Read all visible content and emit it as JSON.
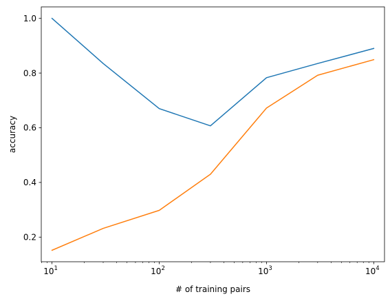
{
  "chart_data": {
    "type": "line",
    "xscale": "log",
    "x": [
      10,
      30,
      100,
      300,
      1000,
      3000,
      10000
    ],
    "series": [
      {
        "color": "#1f77b4",
        "values": [
          1.0,
          0.835,
          0.67,
          0.607,
          0.783,
          0.835,
          0.89
        ]
      },
      {
        "color": "#ff7f0e",
        "values": [
          0.152,
          0.232,
          0.298,
          0.43,
          0.672,
          0.792,
          0.849
        ]
      }
    ],
    "xlabel": "# of training pairs",
    "ylabel": "accuracy",
    "xlim": [
      7.94,
      12600
    ],
    "ylim": [
      0.11,
      1.042
    ],
    "xticks": [
      {
        "value": 10,
        "base": "10",
        "exp": "1"
      },
      {
        "value": 100,
        "base": "10",
        "exp": "2"
      },
      {
        "value": 1000,
        "base": "10",
        "exp": "3"
      },
      {
        "value": 10000,
        "base": "10",
        "exp": "4"
      }
    ],
    "yticks": [
      {
        "value": 0.2,
        "label": "0.2"
      },
      {
        "value": 0.4,
        "label": "0.4"
      },
      {
        "value": 0.6,
        "label": "0.6"
      },
      {
        "value": 0.8,
        "label": "0.8"
      },
      {
        "value": 1.0,
        "label": "1.0"
      }
    ],
    "grid": false,
    "legend": "none"
  }
}
